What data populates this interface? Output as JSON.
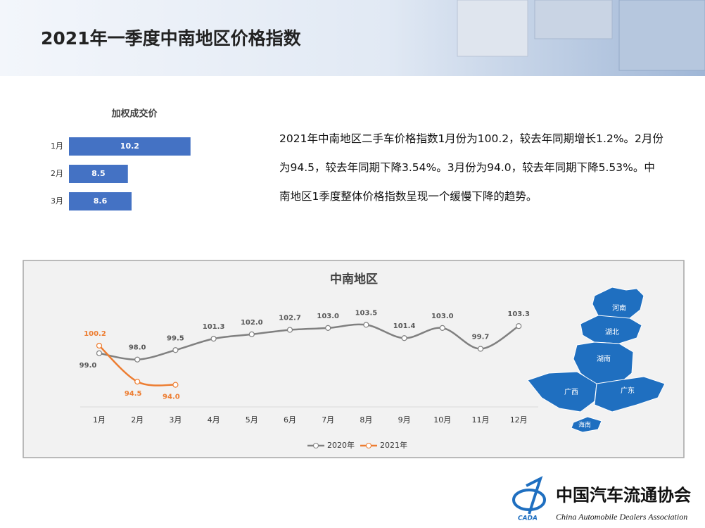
{
  "header": {
    "title": "2021年一季度中南地区价格指数"
  },
  "paragraph": "2021年中南地区二手车价格指数1月份为100.2，较去年同期增长1.2%。2月份为94.5，较去年同期下降3.54%。3月份为94.0，较去年同期下降5.53%。中南地区1季度整体价格指数呈现一个缓慢下降的趋势。",
  "chart_data": [
    {
      "type": "hbar",
      "title": "加权成交价",
      "categories": [
        "1月",
        "2月",
        "3月"
      ],
      "values": [
        10.2,
        8.5,
        8.6
      ],
      "color": "#4472c4",
      "xlim": [
        6.9,
        12
      ]
    },
    {
      "type": "line",
      "title": "中南地区",
      "categories": [
        "1月",
        "2月",
        "3月",
        "4月",
        "5月",
        "6月",
        "7月",
        "8月",
        "9月",
        "10月",
        "11月",
        "12月"
      ],
      "ylim": [
        90.5,
        107
      ],
      "series": [
        {
          "name": "2020年",
          "color": "#808080",
          "values": [
            99.0,
            98.0,
            99.5,
            101.3,
            102.0,
            102.7,
            103.0,
            103.5,
            101.4,
            103.0,
            99.7,
            103.3
          ],
          "value_labels": [
            "99.0",
            "98.0",
            "99.5",
            "101.3",
            "102.0",
            "102.7",
            "103.0",
            "103.5",
            "101.4",
            "103.0",
            "99.7",
            "103.3"
          ]
        },
        {
          "name": "2021年",
          "color": "#ed7d31",
          "values": [
            100.2,
            94.5,
            94.0,
            null,
            null,
            null,
            null,
            null,
            null,
            null,
            null,
            null
          ],
          "value_labels": [
            "100.2",
            "94.5",
            "94.0",
            null,
            null,
            null,
            null,
            null,
            null,
            null,
            null,
            null
          ]
        }
      ]
    }
  ],
  "map": {
    "regions": [
      "河南",
      "湖北",
      "湖南",
      "广西",
      "广东",
      "海南"
    ]
  },
  "logo": {
    "name": "中国汽车流通协会",
    "english": "China Automobile Dealers Association",
    "abbr": "CADA"
  }
}
